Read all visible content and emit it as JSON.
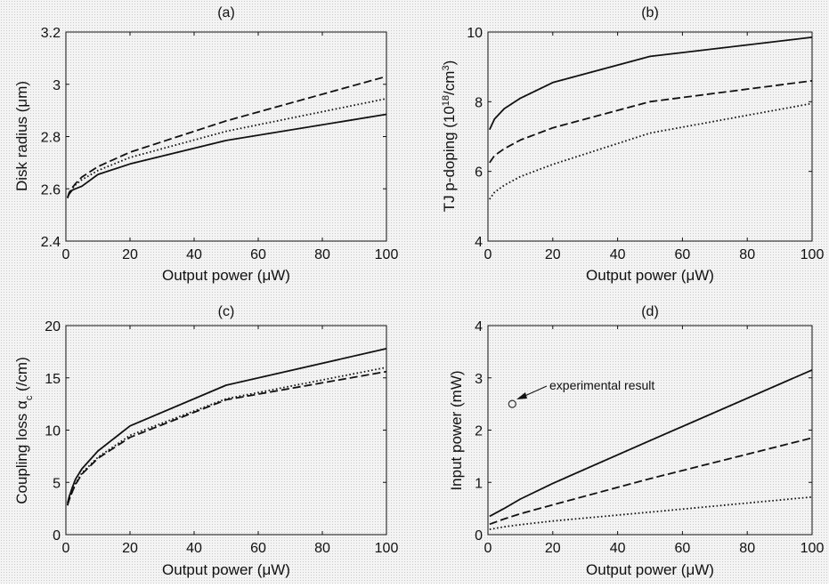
{
  "chart_data": [
    {
      "type": "line",
      "title": "(a)",
      "xlabel": "Output power (μW)",
      "ylabel": "Disk radius (μm)",
      "xlim": [
        0,
        100
      ],
      "ylim": [
        2.4,
        3.2
      ],
      "xticks": [
        0,
        20,
        40,
        60,
        80,
        100
      ],
      "yticks": [
        2.4,
        2.6,
        2.8,
        3,
        3.2
      ],
      "xtick_labels": [
        "0",
        "20",
        "40",
        "60",
        "80",
        "100"
      ],
      "ytick_labels": [
        "2.4",
        "2.6",
        "2.8",
        "3",
        "3.2"
      ],
      "series": [
        {
          "style": "solid",
          "x": [
            0.5,
            1,
            2,
            3,
            5,
            10,
            20,
            50,
            100
          ],
          "y": [
            2.565,
            2.58,
            2.595,
            2.6,
            2.61,
            2.655,
            2.695,
            2.785,
            2.885
          ]
        },
        {
          "style": "dashed",
          "x": [
            0.5,
            1,
            2,
            3,
            5,
            10,
            20,
            50,
            100
          ],
          "y": [
            2.565,
            2.585,
            2.605,
            2.62,
            2.645,
            2.685,
            2.74,
            2.86,
            3.03
          ]
        },
        {
          "style": "dotted",
          "x": [
            0.5,
            1,
            2,
            3,
            5,
            10,
            20,
            50,
            100
          ],
          "y": [
            2.565,
            2.58,
            2.6,
            2.615,
            2.635,
            2.67,
            2.72,
            2.82,
            2.945
          ]
        }
      ]
    },
    {
      "type": "line",
      "title": "(b)",
      "xlabel": "Output power (μW)",
      "ylabel_main": "TJ p-doping (10",
      "ylabel_sup1": "18",
      "ylabel_mid": "/cm",
      "ylabel_sup2": "3",
      "ylabel_end": ")",
      "xlim": [
        0,
        100
      ],
      "ylim": [
        4,
        10
      ],
      "xticks": [
        0,
        20,
        40,
        60,
        80,
        100
      ],
      "yticks": [
        4,
        6,
        8,
        10
      ],
      "xtick_labels": [
        "0",
        "20",
        "40",
        "60",
        "80",
        "100"
      ],
      "ytick_labels": [
        "4",
        "6",
        "8",
        "10"
      ],
      "series": [
        {
          "style": "solid",
          "x": [
            0.5,
            2,
            5,
            10,
            20,
            50,
            100
          ],
          "y": [
            7.2,
            7.5,
            7.8,
            8.1,
            8.55,
            9.3,
            9.85
          ]
        },
        {
          "style": "dashed",
          "x": [
            0.5,
            2,
            5,
            10,
            20,
            50,
            100
          ],
          "y": [
            6.25,
            6.45,
            6.65,
            6.9,
            7.25,
            8.0,
            8.6
          ]
        },
        {
          "style": "dotted",
          "x": [
            0.5,
            2,
            5,
            10,
            20,
            50,
            100
          ],
          "y": [
            5.2,
            5.4,
            5.6,
            5.85,
            6.2,
            7.1,
            7.95
          ]
        }
      ]
    },
    {
      "type": "line",
      "title": "(c)",
      "xlabel": "Output power (μW)",
      "ylabel_main": "Coupling loss ",
      "ylabel_greek": "α",
      "ylabel_sub": "c",
      "ylabel_end": " (/cm)",
      "xlim": [
        0,
        100
      ],
      "ylim": [
        0,
        20
      ],
      "xticks": [
        0,
        20,
        40,
        60,
        80,
        100
      ],
      "yticks": [
        0,
        5,
        10,
        15,
        20
      ],
      "xtick_labels": [
        "0",
        "20",
        "40",
        "60",
        "80",
        "100"
      ],
      "ytick_labels": [
        "0",
        "5",
        "10",
        "15",
        "20"
      ],
      "series": [
        {
          "style": "solid",
          "x": [
            0.5,
            1,
            2,
            3,
            5,
            10,
            20,
            50,
            100
          ],
          "y": [
            3.0,
            3.6,
            4.5,
            5.3,
            6.3,
            8.0,
            10.4,
            14.3,
            17.8
          ]
        },
        {
          "style": "dashed",
          "x": [
            0.5,
            1,
            2,
            3,
            5,
            10,
            20,
            50,
            100
          ],
          "y": [
            2.8,
            3.3,
            4.1,
            4.8,
            5.8,
            7.3,
            9.3,
            12.9,
            15.6
          ]
        },
        {
          "style": "dotted",
          "x": [
            0.5,
            1,
            2,
            3,
            5,
            10,
            20,
            50,
            100
          ],
          "y": [
            2.8,
            3.4,
            4.2,
            4.9,
            5.9,
            7.4,
            9.5,
            13.0,
            16.0
          ]
        }
      ]
    },
    {
      "type": "line",
      "title": "(d)",
      "xlabel": "Output power (μW)",
      "ylabel": "Input power (mW)",
      "xlim": [
        0,
        100
      ],
      "ylim": [
        0,
        4
      ],
      "xticks": [
        0,
        20,
        40,
        60,
        80,
        100
      ],
      "yticks": [
        0,
        1,
        2,
        3,
        4
      ],
      "xtick_labels": [
        "0",
        "20",
        "40",
        "60",
        "80",
        "100"
      ],
      "ytick_labels": [
        "0",
        "1",
        "2",
        "3",
        "4"
      ],
      "series": [
        {
          "style": "solid",
          "x": [
            0.5,
            5,
            10,
            20,
            50,
            100
          ],
          "y": [
            0.35,
            0.5,
            0.68,
            0.98,
            1.8,
            3.15
          ]
        },
        {
          "style": "dashed",
          "x": [
            0.5,
            5,
            10,
            20,
            50,
            100
          ],
          "y": [
            0.2,
            0.3,
            0.4,
            0.57,
            1.07,
            1.85
          ]
        },
        {
          "style": "dotted",
          "x": [
            0.5,
            5,
            10,
            20,
            50,
            100
          ],
          "y": [
            0.1,
            0.15,
            0.19,
            0.26,
            0.43,
            0.72
          ]
        }
      ],
      "marker": {
        "x": 7.5,
        "y": 2.5,
        "shape": "open-circle"
      },
      "annotation": "experimental result"
    }
  ]
}
